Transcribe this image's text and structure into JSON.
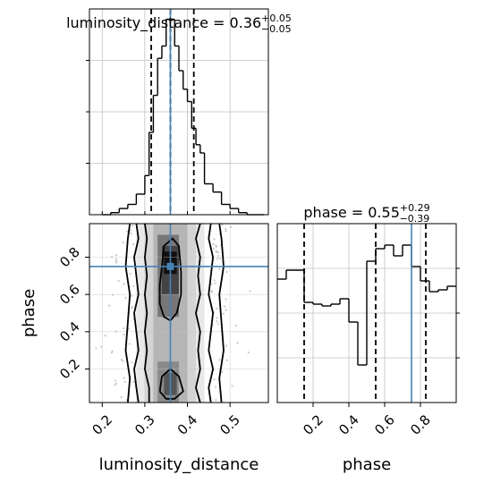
{
  "colors": {
    "truth": "#4682b4",
    "hist": "#000000",
    "grid": "#c0c0c0",
    "points": "#9a9a9a"
  },
  "chart_data": [
    {
      "type": "histogram",
      "panel": "top-left",
      "title": {
        "param": "luminosity_distance",
        "median": "0.36",
        "plus": "+0.05",
        "minus": "−0.05"
      },
      "xlim": [
        0.17,
        0.59
      ],
      "ylim": [
        0,
        1
      ],
      "grid": true,
      "truth": 0.36,
      "quantiles": [
        0.315,
        0.36,
        0.415
      ],
      "bin_edges": [
        0.2,
        0.22,
        0.24,
        0.26,
        0.28,
        0.3,
        0.31,
        0.32,
        0.33,
        0.34,
        0.35,
        0.36,
        0.37,
        0.38,
        0.39,
        0.4,
        0.41,
        0.42,
        0.43,
        0.44,
        0.46,
        0.48,
        0.5,
        0.52,
        0.54,
        0.56,
        0.58
      ],
      "densities": [
        0.0,
        0.01,
        0.03,
        0.05,
        0.1,
        0.19,
        0.4,
        0.58,
        0.76,
        0.82,
        0.95,
        0.95,
        0.82,
        0.7,
        0.61,
        0.55,
        0.42,
        0.34,
        0.3,
        0.15,
        0.11,
        0.05,
        0.03,
        0.01,
        0.0,
        0.0
      ]
    },
    {
      "type": "histogram",
      "panel": "bottom-right",
      "title": {
        "param": "phase",
        "median": "0.55",
        "plus": "+0.29",
        "minus": "−0.39"
      },
      "xlim": [
        0.0,
        1.0
      ],
      "ylim": [
        0,
        1
      ],
      "grid": true,
      "truth": 0.75,
      "quantiles": [
        0.15,
        0.55,
        0.83
      ],
      "bin_edges": [
        0.0,
        0.05,
        0.15,
        0.2,
        0.25,
        0.3,
        0.35,
        0.4,
        0.45,
        0.5,
        0.55,
        0.6,
        0.65,
        0.7,
        0.75,
        0.8,
        0.85,
        0.9,
        0.95,
        1.0
      ],
      "densities": [
        0.69,
        0.74,
        0.56,
        0.55,
        0.54,
        0.55,
        0.58,
        0.45,
        0.21,
        0.79,
        0.86,
        0.88,
        0.82,
        0.88,
        0.76,
        0.68,
        0.62,
        0.63,
        0.65
      ],
      "x_ticks": [
        "0.2",
        "0.4",
        "0.6",
        "0.8"
      ]
    },
    {
      "type": "heatmap",
      "panel": "bottom-left",
      "description": "2D posterior density with scatter points and contours",
      "xlabel": "luminosity_distance",
      "ylabel": "phase",
      "xlim": [
        0.17,
        0.59
      ],
      "ylim": [
        0.02,
        0.98
      ],
      "truth": [
        0.36,
        0.75
      ],
      "grid": true,
      "x_ticks": [
        "0.2",
        "0.3",
        "0.4",
        "0.5"
      ],
      "y_ticks": [
        "0.2",
        "0.4",
        "0.6",
        "0.8"
      ],
      "contours": [
        {
          "level": 1,
          "left": [
            [
              0.31,
              0.02
            ],
            [
              0.31,
              0.1
            ],
            [
              0.3,
              0.2
            ],
            [
              0.305,
              0.3
            ],
            [
              0.3,
              0.4
            ],
            [
              0.305,
              0.5
            ],
            [
              0.3,
              0.6
            ],
            [
              0.305,
              0.7
            ],
            [
              0.3,
              0.8
            ],
            [
              0.305,
              0.9
            ],
            [
              0.3,
              0.98
            ]
          ],
          "right": [
            [
              0.43,
              0.02
            ],
            [
              0.42,
              0.1
            ],
            [
              0.43,
              0.2
            ],
            [
              0.425,
              0.3
            ],
            [
              0.43,
              0.4
            ],
            [
              0.42,
              0.5
            ],
            [
              0.43,
              0.6
            ],
            [
              0.425,
              0.7
            ],
            [
              0.43,
              0.8
            ],
            [
              0.42,
              0.9
            ],
            [
              0.43,
              0.98
            ]
          ]
        },
        {
          "level": 2,
          "left": [
            [
              0.285,
              0.02
            ],
            [
              0.28,
              0.1
            ],
            [
              0.275,
              0.2
            ],
            [
              0.285,
              0.3
            ],
            [
              0.28,
              0.4
            ],
            [
              0.275,
              0.5
            ],
            [
              0.285,
              0.6
            ],
            [
              0.28,
              0.7
            ],
            [
              0.275,
              0.8
            ],
            [
              0.285,
              0.9
            ],
            [
              0.28,
              0.98
            ]
          ],
          "right": [
            [
              0.455,
              0.02
            ],
            [
              0.45,
              0.1
            ],
            [
              0.46,
              0.2
            ],
            [
              0.45,
              0.3
            ],
            [
              0.455,
              0.4
            ],
            [
              0.46,
              0.5
            ],
            [
              0.45,
              0.6
            ],
            [
              0.455,
              0.7
            ],
            [
              0.46,
              0.8
            ],
            [
              0.45,
              0.9
            ],
            [
              0.455,
              0.98
            ]
          ]
        },
        {
          "level": 3,
          "left": [
            [
              0.26,
              0.02
            ],
            [
              0.265,
              0.15
            ],
            [
              0.255,
              0.3
            ],
            [
              0.26,
              0.45
            ],
            [
              0.265,
              0.6
            ],
            [
              0.255,
              0.75
            ],
            [
              0.26,
              0.9
            ],
            [
              0.265,
              0.98
            ]
          ],
          "right": [
            [
              0.48,
              0.02
            ],
            [
              0.475,
              0.15
            ],
            [
              0.485,
              0.3
            ],
            [
              0.48,
              0.45
            ],
            [
              0.475,
              0.6
            ],
            [
              0.485,
              0.75
            ],
            [
              0.48,
              0.9
            ],
            [
              0.475,
              0.98
            ]
          ]
        }
      ],
      "inner_contours": [
        {
          "points": [
            [
              0.335,
              0.55
            ],
            [
              0.345,
              0.48
            ],
            [
              0.36,
              0.46
            ],
            [
              0.375,
              0.5
            ],
            [
              0.385,
              0.6
            ],
            [
              0.385,
              0.72
            ],
            [
              0.38,
              0.86
            ],
            [
              0.365,
              0.9
            ],
            [
              0.345,
              0.86
            ],
            [
              0.34,
              0.75
            ],
            [
              0.335,
              0.65
            ],
            [
              0.335,
              0.55
            ]
          ]
        },
        {
          "points": [
            [
              0.335,
              0.08
            ],
            [
              0.35,
              0.04
            ],
            [
              0.37,
              0.04
            ],
            [
              0.39,
              0.08
            ],
            [
              0.38,
              0.16
            ],
            [
              0.36,
              0.2
            ],
            [
              0.34,
              0.16
            ],
            [
              0.335,
              0.08
            ]
          ]
        }
      ],
      "density_cells": [
        {
          "x": 0.345,
          "y": 0.71,
          "w": 0.03,
          "h": 0.12,
          "shade": "#111111"
        },
        {
          "x": 0.34,
          "y": 0.6,
          "w": 0.04,
          "h": 0.26,
          "shade": "#444444"
        },
        {
          "x": 0.33,
          "y": 0.48,
          "w": 0.05,
          "h": 0.44,
          "shade": "#777777"
        },
        {
          "x": 0.345,
          "y": 0.06,
          "w": 0.03,
          "h": 0.12,
          "shade": "#555555"
        },
        {
          "x": 0.33,
          "y": 0.02,
          "w": 0.05,
          "h": 0.22,
          "shade": "#8a8a8a"
        },
        {
          "x": 0.32,
          "y": 0.02,
          "w": 0.08,
          "h": 0.96,
          "shade": "#b5b5b5"
        },
        {
          "x": 0.3,
          "y": 0.02,
          "w": 0.12,
          "h": 0.96,
          "shade": "#d4d4d4"
        },
        {
          "x": 0.28,
          "y": 0.02,
          "w": 0.16,
          "h": 0.96,
          "shade": "#e8e8e8"
        },
        {
          "x": 0.39,
          "y": 0.3,
          "w": 0.02,
          "h": 0.12,
          "shade": "#8c8c8c"
        }
      ]
    }
  ]
}
